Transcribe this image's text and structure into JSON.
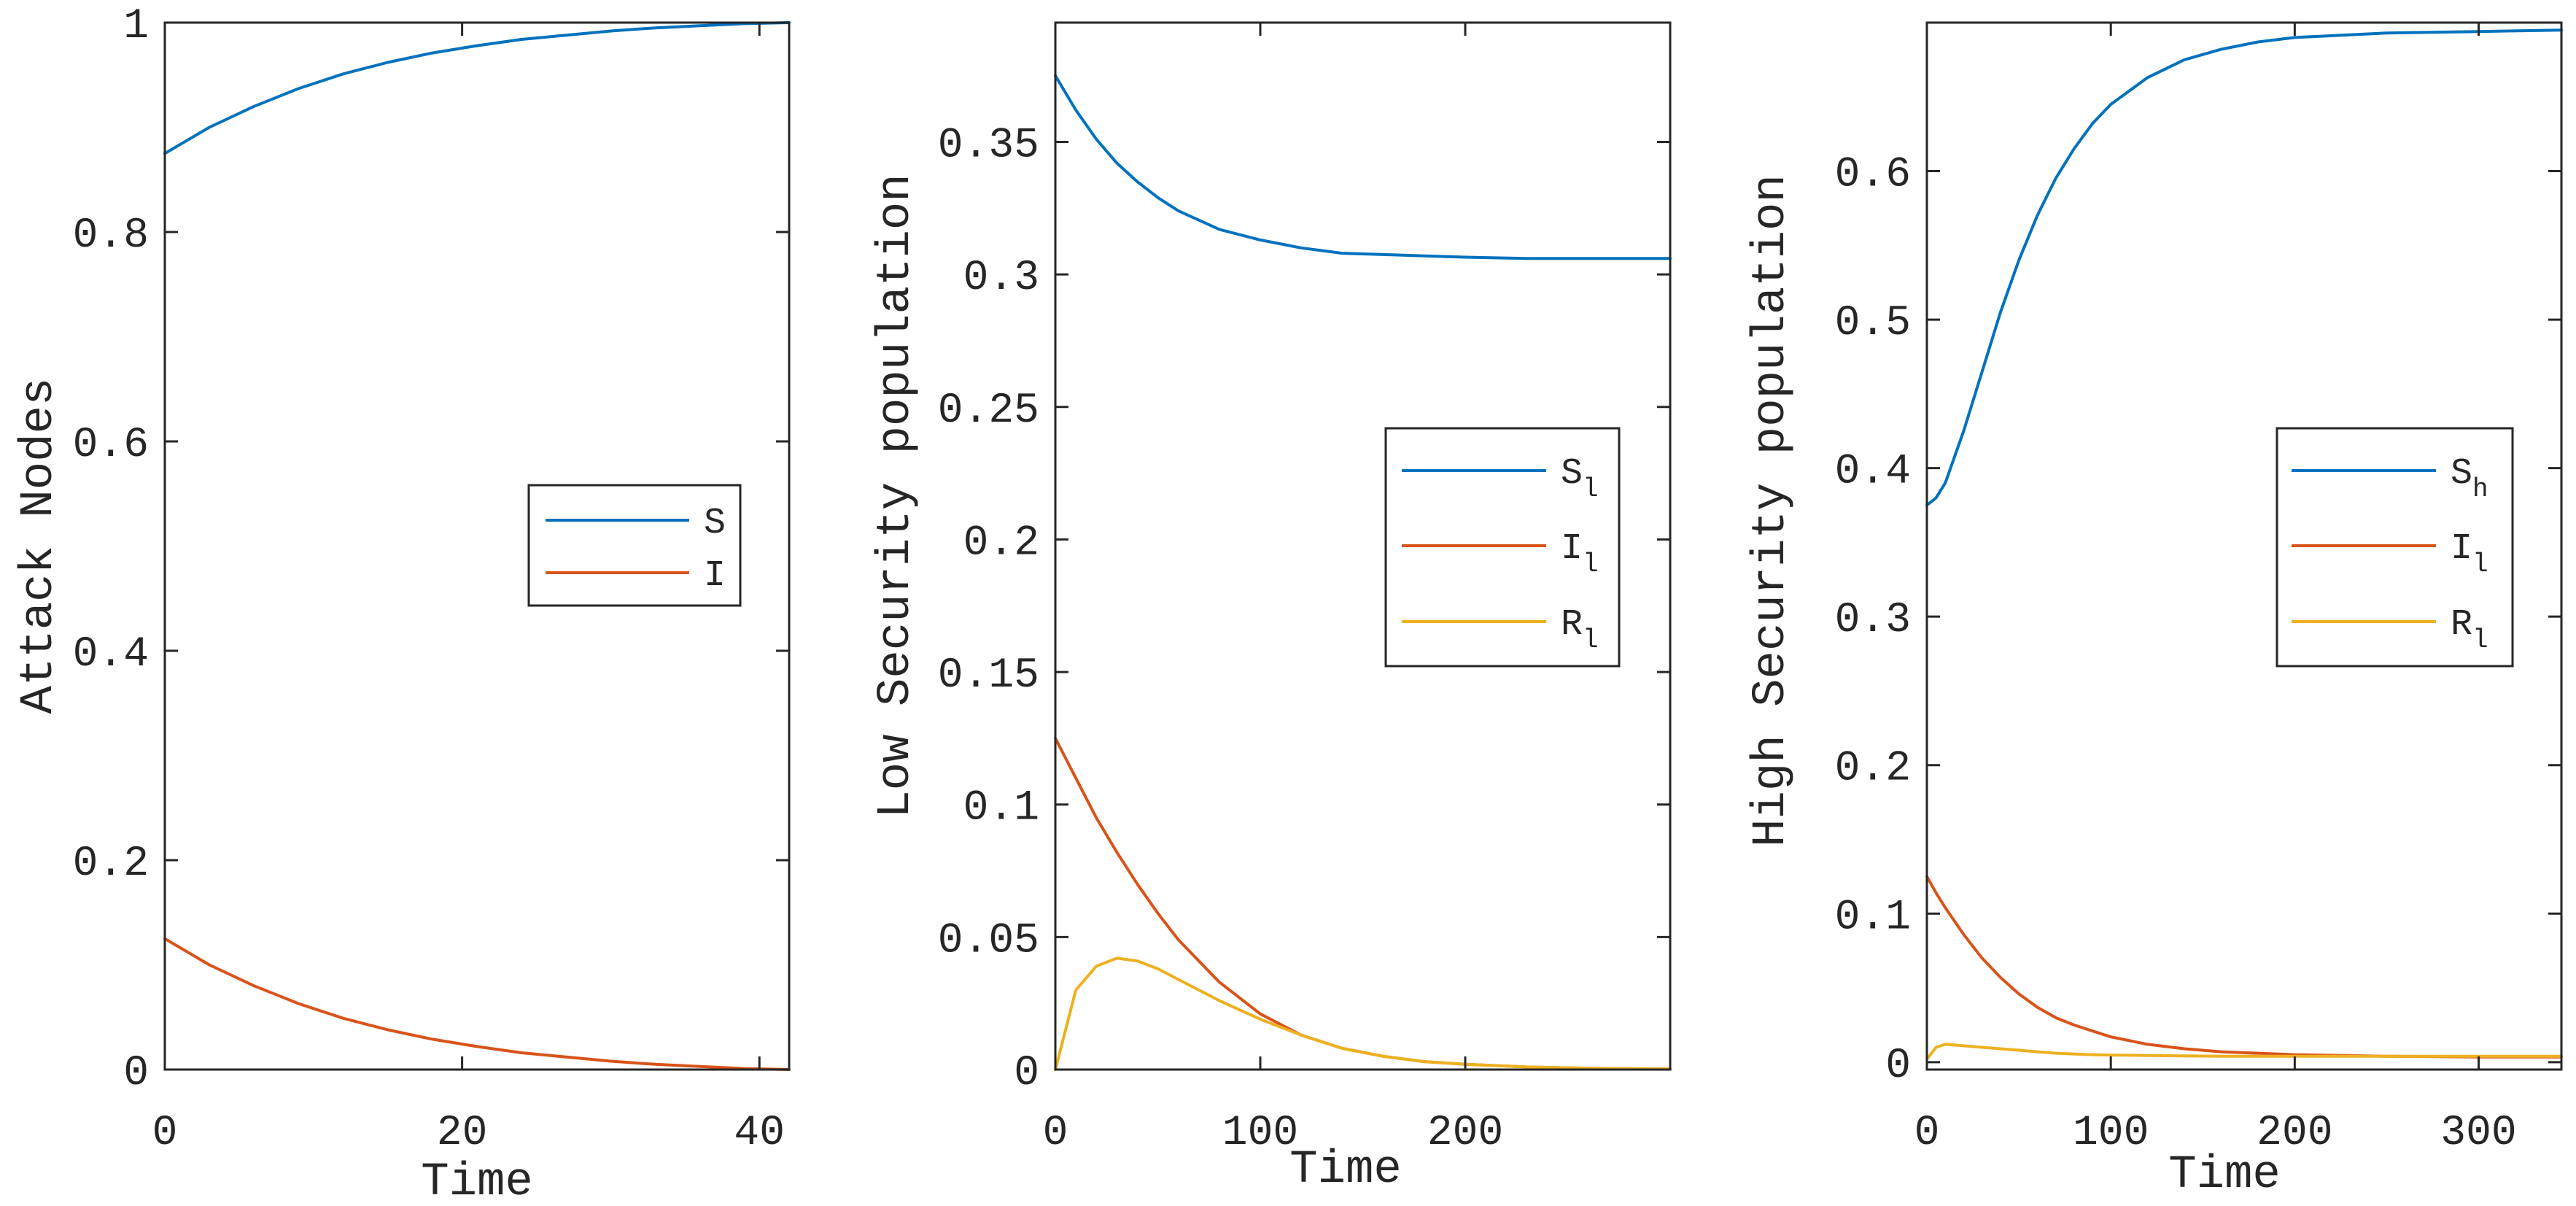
{
  "figure": {
    "colors": {
      "blue": "#0072BD",
      "red": "#D95319",
      "yellow": "#EDB120",
      "axis": "#262626"
    }
  },
  "chart_data": [
    {
      "type": "line",
      "title": "",
      "xlabel": "Time",
      "ylabel": "Attack Nodes",
      "xlim": [
        0,
        42
      ],
      "ylim": [
        0,
        1
      ],
      "xticks": [
        0,
        20,
        40
      ],
      "xtick_labels": [
        "0",
        "20",
        "40"
      ],
      "yticks": [
        0,
        0.2,
        0.4,
        0.6,
        0.8,
        1
      ],
      "ytick_labels": [
        "0",
        "0.2",
        "0.4",
        "0.6",
        "0.8",
        "1"
      ],
      "grid": false,
      "legend_position": "right",
      "x": [
        0,
        3,
        6,
        9,
        12,
        15,
        18,
        21,
        24,
        27,
        30,
        33,
        36,
        39,
        42
      ],
      "series": [
        {
          "name": "S",
          "sub": "",
          "color": "#0072BD",
          "values": [
            0.875,
            0.9,
            0.92,
            0.937,
            0.951,
            0.962,
            0.971,
            0.978,
            0.984,
            0.988,
            0.992,
            0.995,
            0.997,
            0.999,
            1.0
          ]
        },
        {
          "name": "I",
          "sub": "",
          "color": "#D95319",
          "values": [
            0.125,
            0.1,
            0.08,
            0.063,
            0.049,
            0.038,
            0.029,
            0.022,
            0.016,
            0.012,
            0.008,
            0.005,
            0.003,
            0.001,
            0.0
          ]
        }
      ]
    },
    {
      "type": "line",
      "title": "",
      "xlabel": "Time",
      "ylabel": "Low Security population",
      "xlim": [
        0,
        300
      ],
      "ylim": [
        0,
        0.395
      ],
      "xticks": [
        0,
        100,
        200
      ],
      "xtick_labels": [
        "0",
        "100",
        "200"
      ],
      "yticks": [
        0,
        0.05,
        0.1,
        0.15,
        0.2,
        0.25,
        0.3,
        0.35
      ],
      "ytick_labels": [
        "0",
        "0.05",
        "0.1",
        "0.15",
        "0.2",
        "0.25",
        "0.3",
        "0.35"
      ],
      "grid": false,
      "legend_position": "right",
      "x": [
        0,
        10,
        20,
        30,
        40,
        50,
        60,
        80,
        100,
        120,
        140,
        160,
        180,
        200,
        230,
        260,
        300
      ],
      "series": [
        {
          "name": "S",
          "sub": "l",
          "color": "#0072BD",
          "values": [
            0.375,
            0.362,
            0.351,
            0.342,
            0.335,
            0.329,
            0.324,
            0.317,
            0.313,
            0.31,
            0.308,
            0.3075,
            0.307,
            0.3065,
            0.306,
            0.306,
            0.306
          ]
        },
        {
          "name": "I",
          "sub": "l",
          "color": "#D95319",
          "values": [
            0.125,
            0.11,
            0.095,
            0.082,
            0.07,
            0.059,
            0.049,
            0.033,
            0.021,
            0.013,
            0.008,
            0.005,
            0.003,
            0.002,
            0.001,
            0.0005,
            0.0002
          ]
        },
        {
          "name": "R",
          "sub": "l",
          "color": "#EDB120",
          "values": [
            0.0,
            0.03,
            0.039,
            0.042,
            0.041,
            0.038,
            0.034,
            0.026,
            0.019,
            0.013,
            0.008,
            0.005,
            0.003,
            0.002,
            0.001,
            0.0005,
            0.0002
          ]
        }
      ]
    },
    {
      "type": "line",
      "title": "",
      "xlabel": "Time",
      "ylabel": "High Security population",
      "xlim": [
        0,
        345
      ],
      "ylim": [
        -0.005,
        0.7
      ],
      "xticks": [
        0,
        100,
        200,
        300
      ],
      "xtick_labels": [
        "0",
        "100",
        "200",
        "300"
      ],
      "yticks": [
        0,
        0.1,
        0.2,
        0.3,
        0.4,
        0.5,
        0.6
      ],
      "ytick_labels": [
        "0",
        "0.1",
        "0.2",
        "0.3",
        "0.4",
        "0.5",
        "0.6"
      ],
      "grid": false,
      "legend_position": "right",
      "x": [
        0,
        5,
        10,
        20,
        30,
        40,
        50,
        60,
        70,
        80,
        90,
        100,
        120,
        140,
        160,
        180,
        200,
        250,
        300,
        345
      ],
      "series": [
        {
          "name": "S",
          "sub": "h",
          "color": "#0072BD",
          "values": [
            0.375,
            0.38,
            0.39,
            0.425,
            0.465,
            0.505,
            0.54,
            0.57,
            0.595,
            0.615,
            0.632,
            0.645,
            0.663,
            0.675,
            0.682,
            0.687,
            0.69,
            0.693,
            0.694,
            0.695
          ]
        },
        {
          "name": "I",
          "sub": "l",
          "color": "#D95319",
          "values": [
            0.125,
            0.114,
            0.104,
            0.086,
            0.07,
            0.057,
            0.046,
            0.037,
            0.03,
            0.025,
            0.021,
            0.017,
            0.012,
            0.009,
            0.007,
            0.006,
            0.005,
            0.004,
            0.0035,
            0.0035
          ]
        },
        {
          "name": "R",
          "sub": "l",
          "color": "#EDB120",
          "values": [
            0.002,
            0.01,
            0.012,
            0.011,
            0.01,
            0.009,
            0.008,
            0.007,
            0.006,
            0.0055,
            0.005,
            0.0048,
            0.0045,
            0.0042,
            0.004,
            0.004,
            0.004,
            0.004,
            0.004,
            0.004
          ]
        }
      ]
    }
  ]
}
